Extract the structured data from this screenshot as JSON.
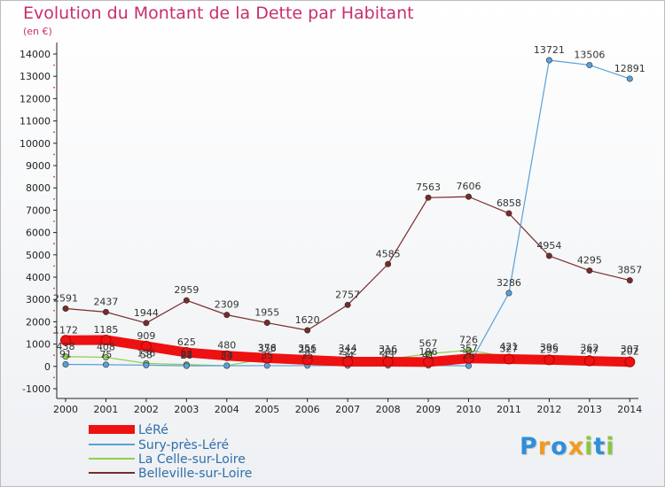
{
  "header": {
    "title": "Evolution du Montant de la Dette par Habitant",
    "subtitle": "(en €)"
  },
  "logo": {
    "text": "Proxiti",
    "letters": [
      {
        "ch": "P",
        "color": "#2f8fd8"
      },
      {
        "ch": "r",
        "color": "#f29a1f"
      },
      {
        "ch": "o",
        "color": "#2f8fd8"
      },
      {
        "ch": "x",
        "color": "#f29a1f"
      },
      {
        "ch": "i",
        "color": "#8cc63f"
      },
      {
        "ch": "t",
        "color": "#2f8fd8"
      },
      {
        "ch": "i",
        "color": "#8cc63f"
      }
    ]
  },
  "chart_data": {
    "type": "line",
    "title": "Evolution du Montant de la Dette par Habitant",
    "subtitle": "(en €)",
    "x": [
      "2000",
      "2001",
      "2002",
      "2003",
      "2004",
      "2005",
      "2006",
      "2007",
      "2008",
      "2009",
      "2010",
      "2011",
      "2012",
      "2013",
      "2014"
    ],
    "ylim": [
      -1000,
      14000
    ],
    "yticks": [
      -1000,
      0,
      1000,
      2000,
      3000,
      4000,
      5000,
      6000,
      7000,
      8000,
      9000,
      10000,
      11000,
      12000,
      13000,
      14000
    ],
    "grid": false,
    "legend": "bottom-left",
    "series": [
      {
        "name": "LéRé",
        "color": "#ee1111",
        "values": [
          1172,
          1185,
          909,
          625,
          480,
          376,
          291,
          212,
          209,
          196,
          357,
          327,
          295,
          247,
          202
        ],
        "labels": [
          "1172",
          "1185",
          "909",
          "625",
          "480",
          "376",
          "291",
          "212",
          "209",
          "196",
          "357",
          "327",
          "295",
          "247",
          "202"
        ]
      },
      {
        "name": "Sury-près-Léré",
        "color": "#5aa0d8",
        "values": [
          91,
          75,
          58,
          28,
          33,
          35,
          35,
          34,
          43,
          41,
          26,
          3286,
          13721,
          13506,
          12891
        ],
        "labels": [
          "91",
          "75",
          "58",
          "28",
          "33",
          "35",
          "35",
          "34",
          "43",
          "41",
          "26",
          "3286",
          "13721",
          "13506",
          "12891"
        ]
      },
      {
        "name": "La Celle-sur-Loire",
        "color": "#8ed04a",
        "values": [
          438,
          408,
          136,
          81,
          34,
          358,
          356,
          344,
          316,
          567,
          726,
          421,
          396,
          362,
          307
        ],
        "labels": [
          "438",
          "408",
          "136",
          "81",
          "34",
          "358",
          "356",
          "344",
          "316",
          "567",
          "726",
          "421",
          "396",
          "362",
          "307"
        ]
      },
      {
        "name": "Belleville-sur-Loire",
        "color": "#7a2a2a",
        "values": [
          2591,
          2437,
          1944,
          2959,
          2309,
          1955,
          1620,
          2757,
          4585,
          7563,
          7606,
          6858,
          4954,
          4295,
          3857
        ],
        "labels": [
          "2591",
          "2437",
          "1944",
          "2959",
          "2309",
          "1955",
          "1620",
          "2757",
          "4585",
          "7563",
          "7606",
          "6858",
          "4954",
          "4295",
          "3857"
        ]
      }
    ]
  }
}
